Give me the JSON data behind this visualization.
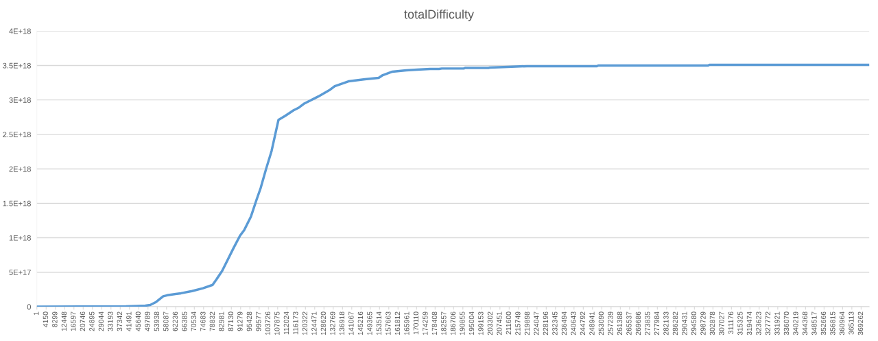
{
  "chart_data": {
    "type": "line",
    "title": "totalDifficulty",
    "x": [
      1,
      39970,
      44890,
      48580,
      50790,
      53500,
      56570,
      58420,
      64570,
      69490,
      74410,
      78720,
      80560,
      83020,
      85480,
      87940,
      91010,
      92860,
      95930,
      98400,
      100240,
      102700,
      105160,
      108230,
      111310,
      115000,
      117450,
      119910,
      126060,
      130980,
      133440,
      139590,
      146970,
      153120,
      154960,
      159270,
      165420,
      170340,
      176180,
      180180,
      181410,
      191250,
      191870,
      202320,
      202940,
      210930,
      219540,
      250900,
      251510,
      300700,
      301320,
      368950,
      372900
    ],
    "series": [
      {
        "color": "#5b9bd5",
        "values": [
          0,
          4000000000000000.0,
          1e+16,
          1.5e+16,
          2.5e+16,
          7e+16,
          1.5e+17,
          1.66e+17,
          1.95e+17,
          2.27e+17,
          2.68e+17,
          3.16e+17,
          4e+17,
          5.2e+17,
          6.8e+17,
          8.4e+17,
          1.03e+18,
          1.11e+18,
          1.31e+18,
          1.55e+18,
          1.72e+18,
          2e+18,
          2.26e+18,
          2.71e+18,
          2.77e+18,
          2.85e+18,
          2.89e+18,
          2.95e+18,
          3.05e+18,
          3.14e+18,
          3.2e+18,
          3.27e+18,
          3.3e+18,
          3.32e+18,
          3.36e+18,
          3.41e+18,
          3.43e+18,
          3.44e+18,
          3.45e+18,
          3.45e+18,
          3.456e+18,
          3.456e+18,
          3.465e+18,
          3.465e+18,
          3.47e+18,
          3.48e+18,
          3.49e+18,
          3.49e+18,
          3.5e+18,
          3.5e+18,
          3.51e+18,
          3.51e+18,
          3.51e+18
        ]
      }
    ],
    "xlim": [
      1,
      372900
    ],
    "xticks": [
      1,
      4150,
      8299,
      12448,
      16597,
      20746,
      24895,
      29044,
      33193,
      37342,
      41491,
      45640,
      49789,
      53938,
      58087,
      62236,
      66385,
      70534,
      74683,
      78832,
      82981,
      87130,
      91279,
      95428,
      99577,
      103726,
      107875,
      112024,
      116173,
      120322,
      124471,
      128620,
      132769,
      136918,
      141067,
      145216,
      149365,
      153514,
      157663,
      161812,
      165961,
      170110,
      174259,
      178408,
      182557,
      186706,
      190855,
      195004,
      199153,
      203302,
      207451,
      211600,
      215749,
      219898,
      224047,
      228196,
      232345,
      236494,
      240643,
      244792,
      248941,
      253090,
      257239,
      261388,
      265537,
      269686,
      273835,
      277984,
      282133,
      286282,
      290431,
      294580,
      298729,
      302878,
      307027,
      311176,
      315325,
      319474,
      323623,
      327772,
      331921,
      336070,
      340219,
      344368,
      348517,
      352666,
      356815,
      360964,
      365113,
      369262
    ],
    "ylim": [
      0,
      4e+18
    ],
    "yticks": [
      0,
      {
        "value": 5e+17,
        "label": "5E+17"
      },
      {
        "value": 1e+18,
        "label": "1E+18"
      },
      {
        "value": 1.5e+18,
        "label": "1.5E+18"
      },
      {
        "value": 2e+18,
        "label": "2E+18"
      },
      {
        "value": 2.5e+18,
        "label": "2.5E+18"
      },
      {
        "value": 3e+18,
        "label": "3E+18"
      },
      {
        "value": 3.5e+18,
        "label": "3.5E+18"
      },
      {
        "value": 4e+18,
        "label": "4E+18"
      }
    ],
    "grid": "y"
  }
}
